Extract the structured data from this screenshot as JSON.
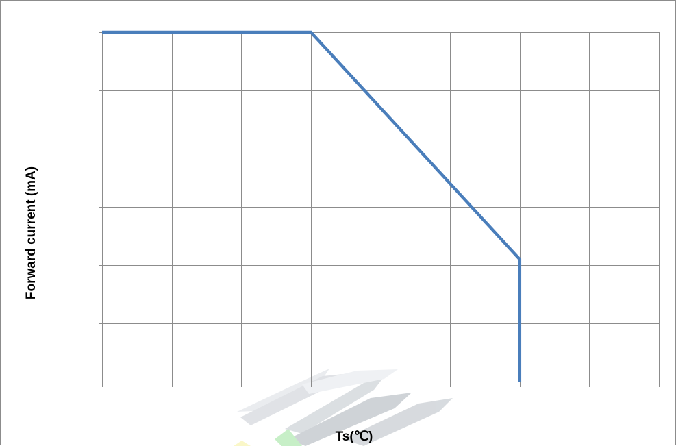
{
  "chart_data": {
    "type": "line",
    "title": "",
    "xlabel": "Ts(℃)",
    "ylabel": "Forward current  (mA)",
    "xlim": [
      0,
      8
    ],
    "ylim": [
      0,
      5
    ],
    "x_major_step": 1,
    "y_major_step": 0.833,
    "grid": true,
    "legend": "none",
    "tick_labels_visible": false,
    "series": [
      {
        "x": [
          0,
          3,
          6,
          6
        ],
        "y": [
          5,
          5,
          1.75,
          0
        ],
        "color": "#4a7ebb"
      }
    ]
  },
  "colors": {
    "grid": "#8c8c8c",
    "frame": "#8c8c8c",
    "line": "#4a7ebb",
    "text": "#000000"
  }
}
